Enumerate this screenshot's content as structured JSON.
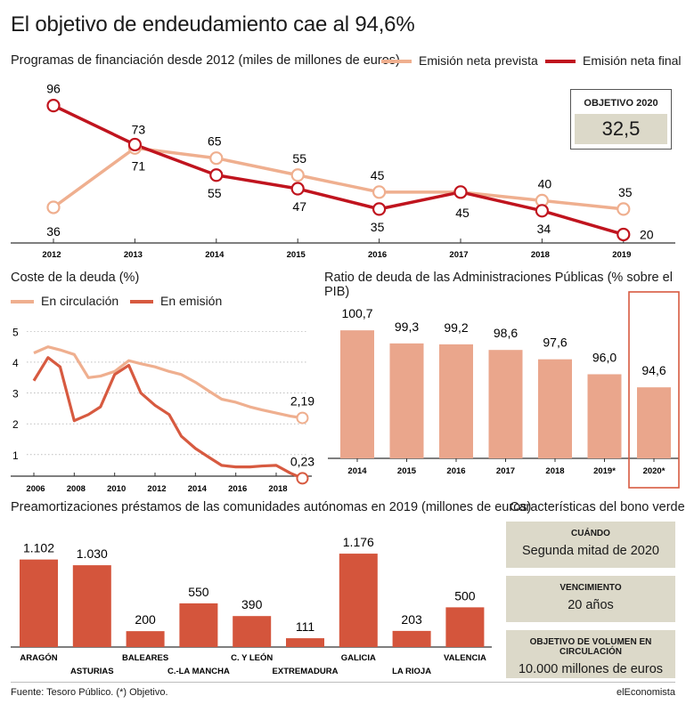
{
  "title": "El objetivo de endeudamiento cae al 94,6%",
  "programas": {
    "subtitle": "Programas de financiación desde 2012 (miles de millones de euros)",
    "legend_prevista": "Emisión neta prevista",
    "legend_final": "Emisión neta final",
    "objetivo_label": "OBJETIVO 2020",
    "objetivo_value": "32,5"
  },
  "coste": {
    "subtitle": "Coste de la deuda (%)",
    "legend_circ": "En circulación",
    "legend_emis": "En emisión"
  },
  "ratio": {
    "subtitle": "Ratio de deuda de las Administraciones Públicas (% sobre el PIB)"
  },
  "preamort": {
    "subtitle": "Preamortizaciones préstamos de las comunidades autónomas en 2019 (millones de euros)"
  },
  "bono": {
    "title": "Características del bono verde",
    "cuando_label": "CUÁNDO",
    "cuando_value": "Segunda mitad de 2020",
    "venc_label": "VENCIMIENTO",
    "venc_value": "20 años",
    "obj_label": "OBJETIVO DE VOLUMEN EN CIRCULACIÓN",
    "obj_value": "10.000 millones de euros"
  },
  "footer": {
    "source": "Fuente: Tesoro Público. (*) Objetivo.",
    "brand": "elEconomista"
  },
  "colors": {
    "light_salmon": "#efaf8f",
    "dark_red": "#c0141e",
    "orange_red": "#d75a40",
    "ratio_bar": "#eaa68c",
    "bar_red": "#d4553c",
    "gray_box": "#dcd9c9"
  },
  "chart_data": [
    {
      "type": "line",
      "title": "Programas de financiación desde 2012 (miles de millones de euros)",
      "x": [
        "2012",
        "2013",
        "2014",
        "2015",
        "2016",
        "2017",
        "2018",
        "2019"
      ],
      "series": [
        {
          "name": "Emisión neta prevista",
          "values": [
            36,
            71,
            65,
            55,
            45,
            45,
            40,
            35
          ],
          "labels": [
            "36",
            "71",
            "65",
            "55",
            "45",
            "",
            "40",
            "35"
          ]
        },
        {
          "name": "Emisión neta final",
          "values": [
            96,
            73,
            55,
            47,
            35,
            45,
            34,
            20
          ],
          "labels": [
            "96",
            "73",
            "55",
            "47",
            "35",
            "45",
            "34",
            "20"
          ]
        }
      ],
      "ylim": [
        15,
        100
      ]
    },
    {
      "type": "line",
      "title": "Coste de la deuda (%)",
      "x_ticks": [
        "2006",
        "2008",
        "2010",
        "2012",
        "2014",
        "2016",
        "2018"
      ],
      "y_ticks": [
        "1",
        "2",
        "3",
        "4",
        "5"
      ],
      "xlim": [
        2006,
        2019.6
      ],
      "ylim": [
        0.3,
        5.3
      ],
      "series": [
        {
          "name": "En circulación",
          "x": [
            2006,
            2006.7,
            2007.3,
            2008,
            2008.7,
            2009.3,
            2010,
            2010.7,
            2011.3,
            2012,
            2012.7,
            2013.3,
            2014,
            2014.7,
            2015.3,
            2016,
            2016.7,
            2017.3,
            2018,
            2018.7,
            2019.3
          ],
          "values": [
            4.3,
            4.5,
            4.4,
            4.25,
            3.5,
            3.55,
            3.7,
            4.05,
            3.95,
            3.85,
            3.7,
            3.6,
            3.35,
            3.05,
            2.8,
            2.7,
            2.55,
            2.45,
            2.35,
            2.25,
            2.19
          ],
          "end_label": "2,19"
        },
        {
          "name": "En emisión",
          "x": [
            2006,
            2006.7,
            2007.3,
            2008,
            2008.7,
            2009.3,
            2010,
            2010.7,
            2011.3,
            2012,
            2012.7,
            2013.3,
            2014,
            2014.7,
            2015.3,
            2016,
            2016.7,
            2017.3,
            2018,
            2018.7,
            2019.3
          ],
          "values": [
            3.4,
            4.15,
            3.85,
            2.1,
            2.3,
            2.55,
            3.6,
            3.9,
            3.0,
            2.6,
            2.3,
            1.6,
            1.2,
            0.9,
            0.65,
            0.6,
            0.6,
            0.63,
            0.65,
            0.4,
            0.23
          ],
          "end_label": "0,23"
        }
      ]
    },
    {
      "type": "bar",
      "title": "Ratio de deuda de las Administraciones Públicas (% sobre el PIB)",
      "categories": [
        "2014",
        "2015",
        "2016",
        "2017",
        "2018",
        "2019*",
        "2020*"
      ],
      "values": [
        100.7,
        99.3,
        99.2,
        98.6,
        97.6,
        96.0,
        94.6
      ],
      "labels": [
        "100,7",
        "99,3",
        "99,2",
        "98,6",
        "97,6",
        "96,0",
        "94,6"
      ],
      "ylim": [
        87,
        103
      ]
    },
    {
      "type": "bar",
      "title": "Preamortizaciones préstamos de las comunidades autónomas en 2019 (millones de euros)",
      "categories": [
        "ARAGÓN",
        "ASTURIAS",
        "BALEARES",
        "C.-LA MANCHA",
        "C. Y LEÓN",
        "EXTREMADURA",
        "GALICIA",
        "LA RIOJA",
        "VALENCIA"
      ],
      "values": [
        1102,
        1030,
        200,
        550,
        390,
        111,
        1176,
        203,
        500
      ],
      "labels": [
        "1.102",
        "1.030",
        "200",
        "550",
        "390",
        "111",
        "1.176",
        "203",
        "500"
      ],
      "ylim": [
        0,
        1300
      ]
    }
  ]
}
